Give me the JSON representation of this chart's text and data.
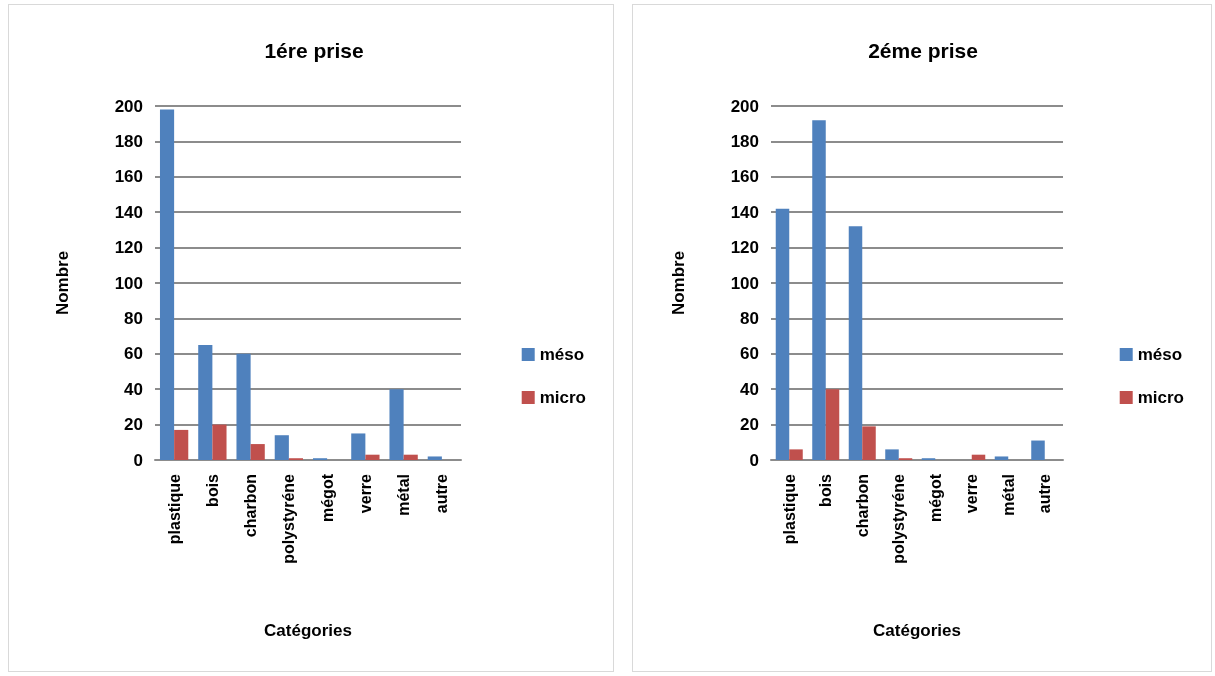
{
  "chart_data": [
    {
      "type": "bar",
      "title": "1ére prise",
      "xlabel": "Catégories",
      "ylabel": "Nombre",
      "categories": [
        "plastique",
        "bois",
        "charbon",
        "polystyréne",
        "mégot",
        "verre",
        "métal",
        "autre"
      ],
      "series": [
        {
          "name": "méso",
          "color": "#4f81bd",
          "values": [
            198,
            65,
            60,
            14,
            1,
            15,
            40,
            2
          ]
        },
        {
          "name": "micro",
          "color": "#c0504d",
          "values": [
            17,
            20,
            9,
            1,
            0,
            3,
            3,
            0
          ]
        }
      ],
      "ylim": [
        0,
        200
      ],
      "yticks": [
        0,
        20,
        40,
        60,
        80,
        100,
        120,
        140,
        160,
        180,
        200
      ],
      "grid": "y",
      "legend": "right"
    },
    {
      "type": "bar",
      "title": "2éme prise",
      "xlabel": "Catégories",
      "ylabel": "Nombre",
      "categories": [
        "plastique",
        "bois",
        "charbon",
        "polystyréne",
        "mégot",
        "verre",
        "métal",
        "autre"
      ],
      "series": [
        {
          "name": "méso",
          "color": "#4f81bd",
          "values": [
            142,
            192,
            132,
            6,
            1,
            0,
            2,
            11
          ]
        },
        {
          "name": "micro",
          "color": "#c0504d",
          "values": [
            6,
            40,
            19,
            1,
            0,
            3,
            0,
            0
          ]
        }
      ],
      "ylim": [
        0,
        200
      ],
      "yticks": [
        0,
        20,
        40,
        60,
        80,
        100,
        120,
        140,
        160,
        180,
        200
      ],
      "grid": "y",
      "legend": "right"
    }
  ]
}
